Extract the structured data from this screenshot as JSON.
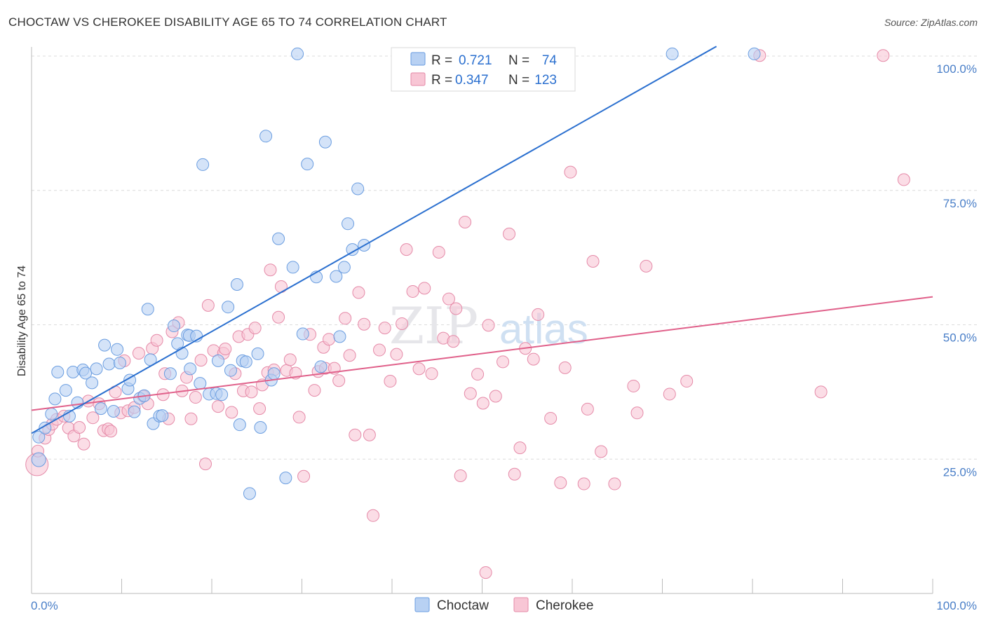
{
  "title": "CHOCTAW VS CHEROKEE DISABILITY AGE 65 TO 74 CORRELATION CHART",
  "source": "Source: ZipAtlas.com",
  "watermark": {
    "zip": "ZIP",
    "atlas": "atlas"
  },
  "colors": {
    "choctaw": "#6a9de0",
    "choctaw_fill": "#b8d1f3",
    "choctaw_line": "#2a6fcf",
    "cherokee": "#e58aa8",
    "cherokee_fill": "#f8c6d5",
    "cherokee_line": "#e0608a",
    "tick_label": "#4a7fc8"
  },
  "legend": {
    "choctaw": {
      "r_label": "R =",
      "r_value": "0.721",
      "n_label": "N =",
      "n_value": "74"
    },
    "cherokee": {
      "r_label": "R =",
      "r_value": "0.347",
      "n_label": "N =",
      "n_value": "123"
    }
  },
  "chart_data": {
    "type": "scatter",
    "title": "CHOCTAW VS CHEROKEE DISABILITY AGE 65 TO 74 CORRELATION CHART",
    "xlabel": "",
    "ylabel": "Disability Age 65 to 74",
    "xlim": [
      0,
      100
    ],
    "ylim": [
      0,
      100
    ],
    "x_tick_labels": [
      "0.0%",
      "100.0%"
    ],
    "y_tick_labels": [
      "25.0%",
      "50.0%",
      "75.0%",
      "100.0%"
    ],
    "y_ticks": [
      25,
      50,
      75,
      100
    ],
    "grid": "horizontal dashed",
    "legend_position": "top-center",
    "bottom_legend": [
      "Choctaw",
      "Cherokee"
    ],
    "series": [
      {
        "name": "Choctaw",
        "color": "#6a9de0",
        "trend": {
          "x": [
            0,
            76
          ],
          "y": [
            29.8,
            101.8
          ]
        },
        "points": [
          [
            0.8,
            24.9
          ],
          [
            0.8,
            29.1
          ],
          [
            1.5,
            30.8
          ],
          [
            2.2,
            33.4
          ],
          [
            2.6,
            36.2
          ],
          [
            2.9,
            41.2
          ],
          [
            3.8,
            37.8
          ],
          [
            4.2,
            33.0
          ],
          [
            4.6,
            41.2
          ],
          [
            5.1,
            35.5
          ],
          [
            5.7,
            41.6
          ],
          [
            6.0,
            41.0
          ],
          [
            6.7,
            39.2
          ],
          [
            7.2,
            41.8
          ],
          [
            7.7,
            34.4
          ],
          [
            8.1,
            46.2
          ],
          [
            8.6,
            42.7
          ],
          [
            9.1,
            33.9
          ],
          [
            9.5,
            45.4
          ],
          [
            9.8,
            42.9
          ],
          [
            10.7,
            38.1
          ],
          [
            10.9,
            39.7
          ],
          [
            11.4,
            33.8
          ],
          [
            12.0,
            36.3
          ],
          [
            12.5,
            36.8
          ],
          [
            12.9,
            52.9
          ],
          [
            13.2,
            43.5
          ],
          [
            13.5,
            31.6
          ],
          [
            14.2,
            33.0
          ],
          [
            14.5,
            33.1
          ],
          [
            15.4,
            40.9
          ],
          [
            15.8,
            49.8
          ],
          [
            16.2,
            46.5
          ],
          [
            16.7,
            44.7
          ],
          [
            17.3,
            48.1
          ],
          [
            17.5,
            48.0
          ],
          [
            17.6,
            41.8
          ],
          [
            18.3,
            47.9
          ],
          [
            18.7,
            39.1
          ],
          [
            19.0,
            79.8
          ],
          [
            19.7,
            37.1
          ],
          [
            20.5,
            37.2
          ],
          [
            20.7,
            43.3
          ],
          [
            21.1,
            37.0
          ],
          [
            21.8,
            53.3
          ],
          [
            22.1,
            41.5
          ],
          [
            22.8,
            57.5
          ],
          [
            23.1,
            31.4
          ],
          [
            23.4,
            43.3
          ],
          [
            23.8,
            43.1
          ],
          [
            25.1,
            44.6
          ],
          [
            25.4,
            30.9
          ],
          [
            26.0,
            85.1
          ],
          [
            26.6,
            39.7
          ],
          [
            26.9,
            40.9
          ],
          [
            27.4,
            66.0
          ],
          [
            28.2,
            21.5
          ],
          [
            29.0,
            60.7
          ],
          [
            29.5,
            100.4
          ],
          [
            30.1,
            48.3
          ],
          [
            30.6,
            79.9
          ],
          [
            31.6,
            58.9
          ],
          [
            32.1,
            42.2
          ],
          [
            32.6,
            84.0
          ],
          [
            33.8,
            59.0
          ],
          [
            34.2,
            47.8
          ],
          [
            34.7,
            60.7
          ],
          [
            35.1,
            68.8
          ],
          [
            35.6,
            64.0
          ],
          [
            36.2,
            75.3
          ],
          [
            36.9,
            64.8
          ],
          [
            71.1,
            100.4
          ],
          [
            80.2,
            100.4
          ],
          [
            24.2,
            18.6
          ]
        ]
      },
      {
        "name": "Cherokee",
        "color": "#e58aa8",
        "trend": {
          "x": [
            0,
            100
          ],
          "y": [
            34.1,
            55.2
          ]
        },
        "points": [
          [
            0.6,
            24.0
          ],
          [
            0.7,
            26.5
          ],
          [
            1.5,
            28.9
          ],
          [
            1.9,
            30.5
          ],
          [
            2.3,
            31.5
          ],
          [
            2.8,
            32.4
          ],
          [
            3.6,
            33.0
          ],
          [
            4.1,
            30.8
          ],
          [
            4.7,
            29.3
          ],
          [
            5.3,
            30.9
          ],
          [
            5.8,
            27.8
          ],
          [
            6.3,
            35.8
          ],
          [
            6.8,
            32.7
          ],
          [
            7.5,
            35.3
          ],
          [
            8.0,
            30.3
          ],
          [
            8.5,
            30.6
          ],
          [
            8.8,
            30.2
          ],
          [
            9.3,
            37.5
          ],
          [
            9.9,
            33.6
          ],
          [
            10.3,
            43.3
          ],
          [
            10.7,
            34.0
          ],
          [
            11.4,
            34.6
          ],
          [
            11.9,
            44.7
          ],
          [
            12.4,
            36.7
          ],
          [
            12.9,
            35.3
          ],
          [
            13.4,
            45.6
          ],
          [
            13.9,
            47.1
          ],
          [
            14.6,
            37.0
          ],
          [
            14.8,
            40.9
          ],
          [
            15.2,
            32.5
          ],
          [
            15.6,
            48.7
          ],
          [
            16.3,
            50.4
          ],
          [
            16.7,
            37.7
          ],
          [
            17.2,
            40.2
          ],
          [
            17.7,
            32.5
          ],
          [
            18.2,
            36.5
          ],
          [
            18.8,
            43.4
          ],
          [
            19.3,
            24.1
          ],
          [
            19.6,
            53.6
          ],
          [
            20.2,
            45.2
          ],
          [
            20.7,
            34.8
          ],
          [
            21.3,
            44.7
          ],
          [
            21.5,
            45.5
          ],
          [
            22.2,
            33.7
          ],
          [
            22.6,
            40.9
          ],
          [
            23.0,
            47.8
          ],
          [
            23.5,
            37.7
          ],
          [
            24.0,
            48.2
          ],
          [
            24.4,
            37.5
          ],
          [
            24.8,
            49.4
          ],
          [
            25.3,
            34.4
          ],
          [
            25.6,
            38.8
          ],
          [
            26.2,
            41.1
          ],
          [
            26.5,
            60.2
          ],
          [
            26.9,
            41.6
          ],
          [
            27.4,
            51.4
          ],
          [
            27.7,
            57.1
          ],
          [
            28.3,
            41.5
          ],
          [
            28.7,
            43.5
          ],
          [
            29.3,
            41.0
          ],
          [
            29.7,
            32.8
          ],
          [
            30.2,
            21.8
          ],
          [
            30.9,
            48.2
          ],
          [
            31.4,
            37.8
          ],
          [
            31.8,
            41.3
          ],
          [
            32.4,
            45.8
          ],
          [
            32.6,
            41.9
          ],
          [
            33.0,
            47.3
          ],
          [
            33.6,
            41.9
          ],
          [
            34.1,
            39.6
          ],
          [
            34.8,
            51.2
          ],
          [
            35.3,
            44.3
          ],
          [
            35.9,
            29.5
          ],
          [
            36.3,
            56.0
          ],
          [
            36.9,
            50.1
          ],
          [
            37.5,
            29.5
          ],
          [
            37.9,
            14.5
          ],
          [
            38.6,
            45.3
          ],
          [
            39.2,
            49.4
          ],
          [
            39.8,
            39.5
          ],
          [
            40.5,
            44.5
          ],
          [
            41.1,
            50.2
          ],
          [
            41.6,
            64.0
          ],
          [
            42.3,
            56.2
          ],
          [
            43.0,
            41.8
          ],
          [
            43.6,
            56.8
          ],
          [
            44.4,
            40.9
          ],
          [
            45.2,
            63.5
          ],
          [
            45.7,
            47.5
          ],
          [
            46.3,
            54.8
          ],
          [
            46.8,
            46.9
          ],
          [
            47.1,
            53.0
          ],
          [
            47.6,
            21.9
          ],
          [
            48.1,
            69.1
          ],
          [
            48.7,
            37.2
          ],
          [
            49.5,
            40.8
          ],
          [
            50.1,
            35.4
          ],
          [
            50.7,
            49.9
          ],
          [
            51.5,
            36.7
          ],
          [
            52.3,
            43.1
          ],
          [
            53.0,
            66.9
          ],
          [
            53.6,
            22.2
          ],
          [
            54.2,
            27.1
          ],
          [
            54.8,
            45.6
          ],
          [
            55.7,
            43.6
          ],
          [
            56.2,
            51.9
          ],
          [
            57.6,
            32.6
          ],
          [
            58.7,
            20.6
          ],
          [
            59.2,
            42.0
          ],
          [
            59.8,
            78.4
          ],
          [
            61.3,
            20.4
          ],
          [
            61.7,
            34.3
          ],
          [
            62.3,
            61.8
          ],
          [
            63.2,
            26.4
          ],
          [
            64.7,
            20.4
          ],
          [
            66.8,
            38.6
          ],
          [
            67.2,
            33.6
          ],
          [
            68.2,
            60.9
          ],
          [
            70.8,
            37.1
          ],
          [
            72.7,
            39.5
          ],
          [
            80.8,
            100.1
          ],
          [
            87.6,
            37.5
          ],
          [
            94.5,
            100.1
          ],
          [
            96.8,
            77.0
          ],
          [
            50.4,
            3.9
          ]
        ]
      }
    ]
  }
}
